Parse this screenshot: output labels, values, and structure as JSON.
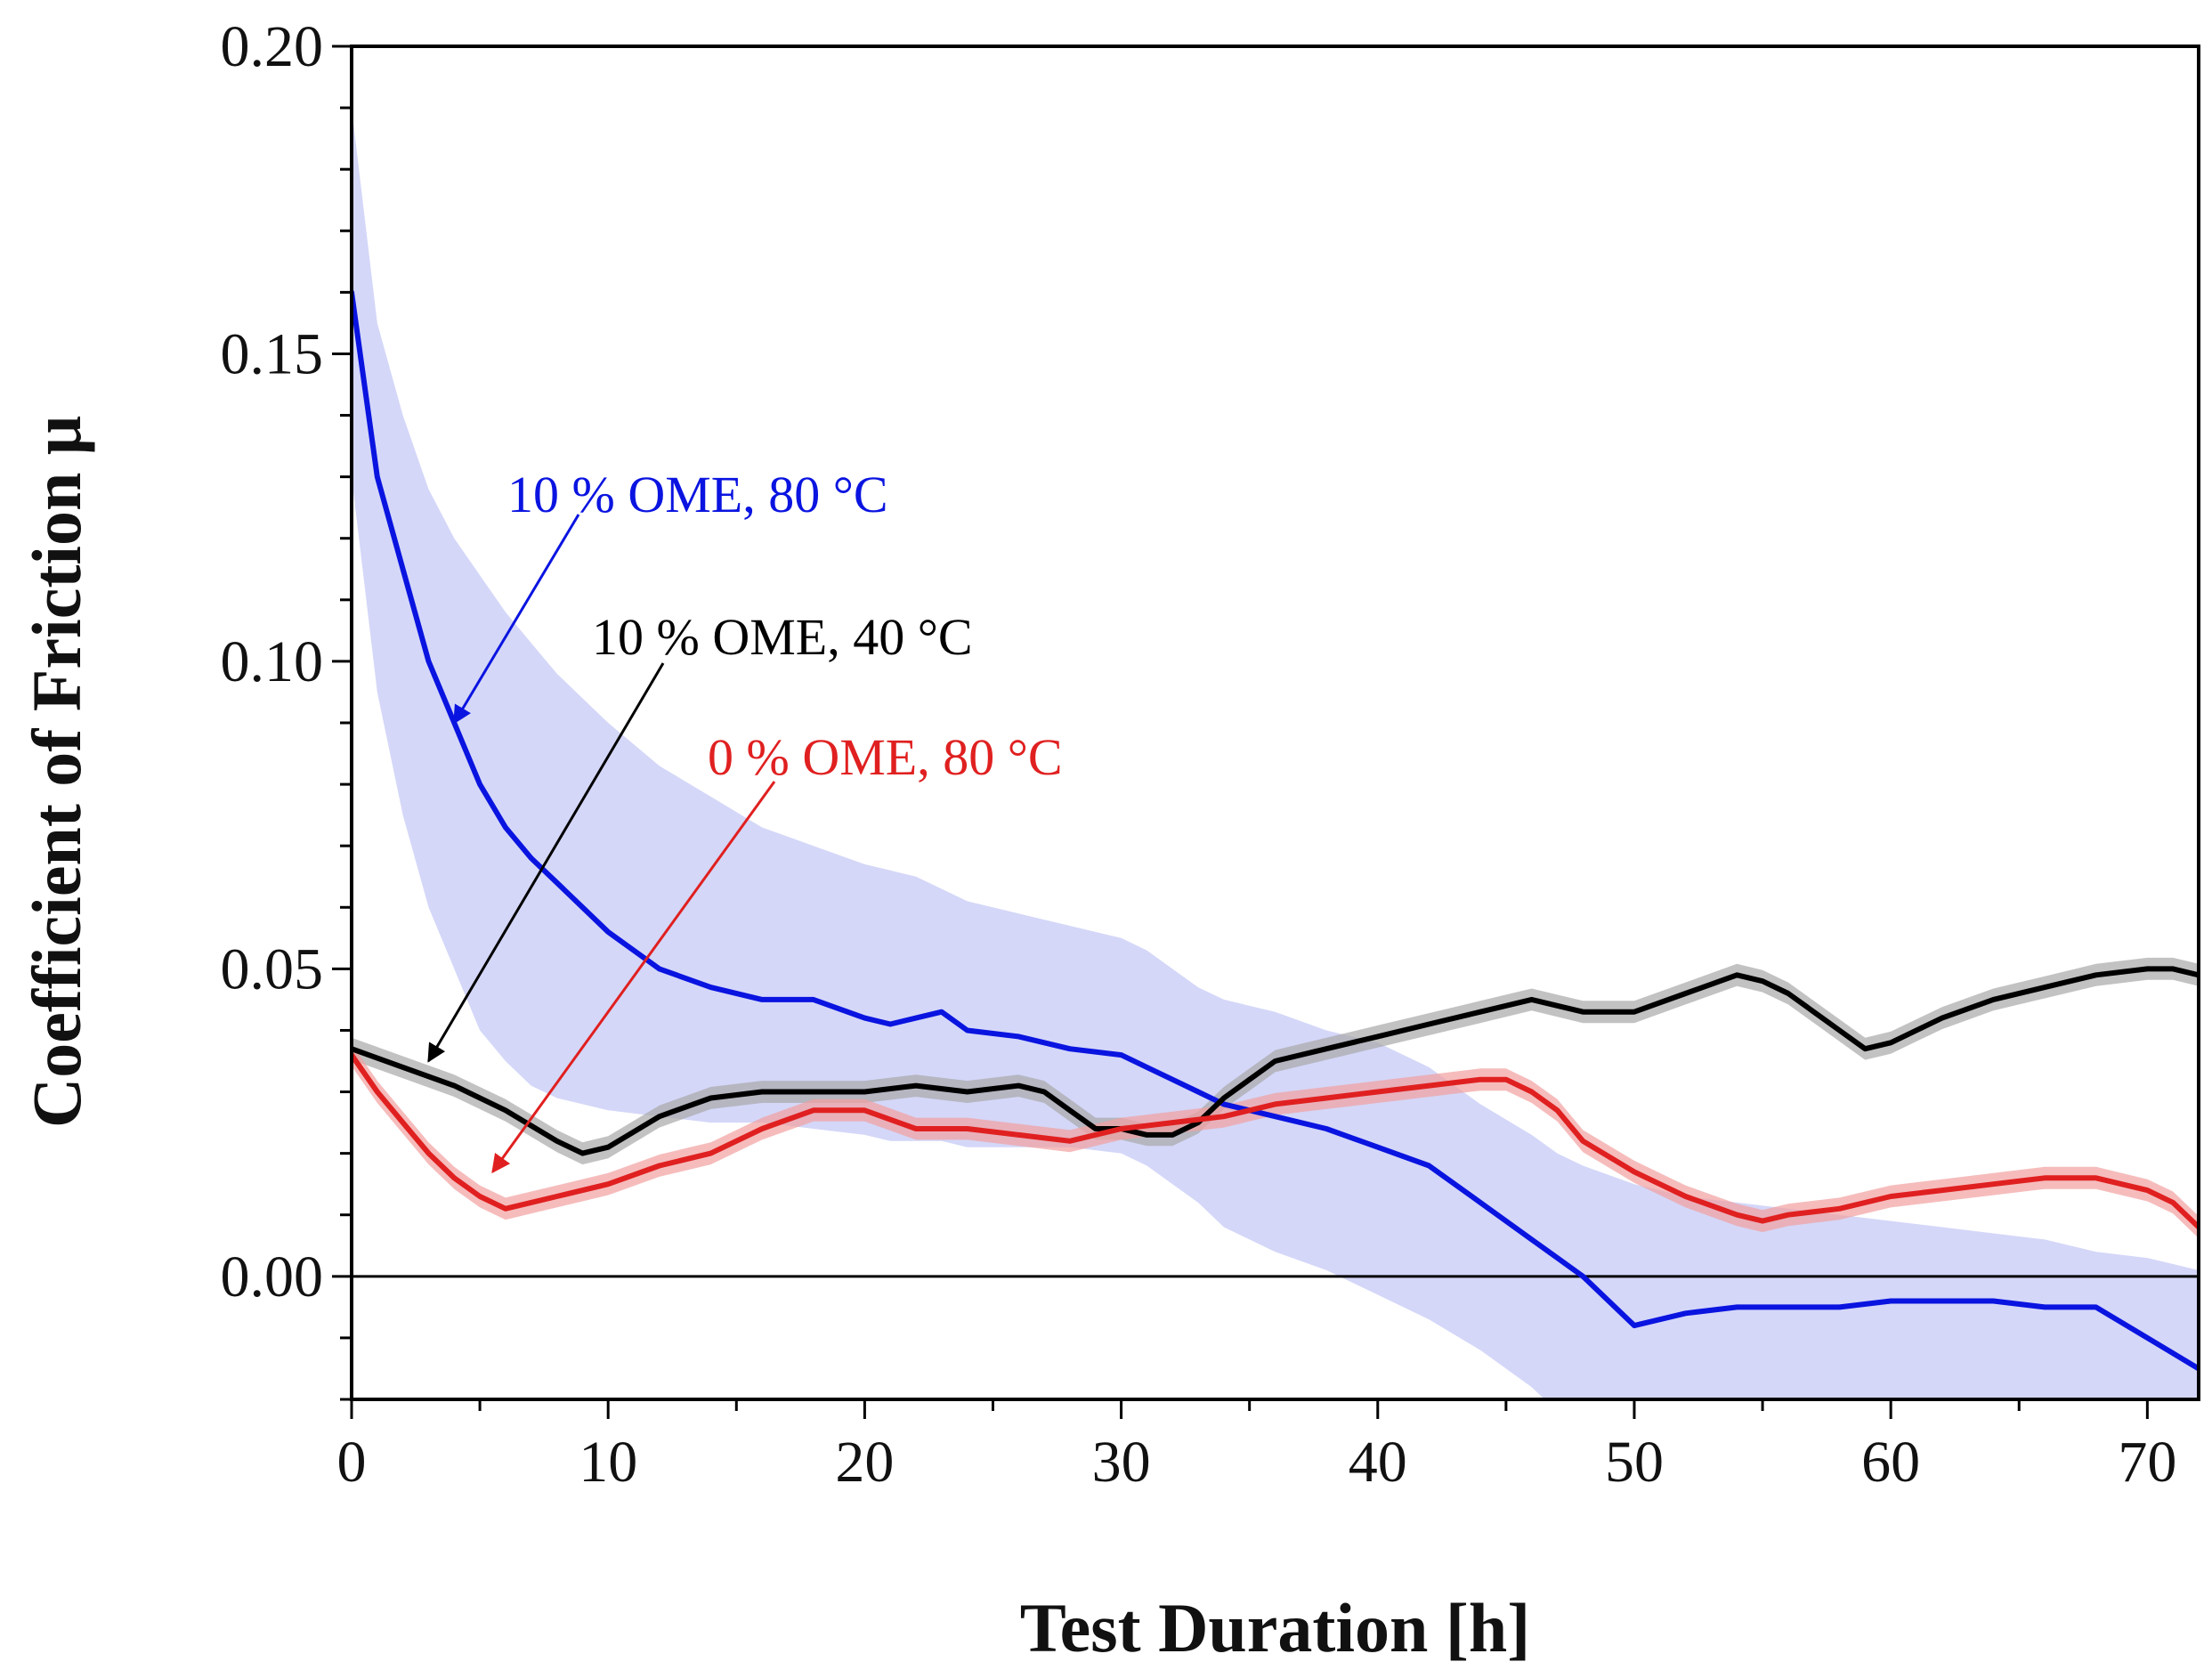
{
  "chart_data": {
    "type": "line",
    "title": "",
    "xlabel": "Test Duration [h]",
    "ylabel": "Coefficient of Friction μ",
    "xlim": [
      0,
      72
    ],
    "ylim": [
      -0.02,
      0.2
    ],
    "x_ticks": [
      0,
      10,
      20,
      30,
      40,
      50,
      60,
      70
    ],
    "x_tick_labels": [
      "0",
      "10",
      "20",
      "30",
      "40",
      "50",
      "60",
      "70"
    ],
    "y_ticks": [
      0.0,
      0.05,
      0.1,
      0.15,
      0.2
    ],
    "y_tick_labels": [
      "0.00",
      "0.05",
      "0.10",
      "0.15",
      "0.20"
    ],
    "grid": false,
    "zero_line": true,
    "series": [
      {
        "name": "10 % OME, 80 °C",
        "color": "#0a14e0",
        "band_color": "#c6c9f5",
        "x": [
          0,
          1,
          2,
          3,
          4,
          5,
          6,
          7,
          8,
          10,
          12,
          14,
          16,
          18,
          20,
          21,
          22,
          23,
          24,
          26,
          28,
          30,
          31,
          32,
          33,
          34,
          36,
          38,
          40,
          42,
          44,
          46,
          47,
          48,
          50,
          52,
          54,
          56,
          58,
          60,
          62,
          64,
          66,
          68,
          70,
          72
        ],
        "y": [
          0.16,
          0.13,
          0.115,
          0.1,
          0.09,
          0.08,
          0.073,
          0.068,
          0.064,
          0.056,
          0.05,
          0.047,
          0.045,
          0.045,
          0.042,
          0.041,
          0.042,
          0.043,
          0.04,
          0.039,
          0.037,
          0.036,
          0.034,
          0.032,
          0.03,
          0.028,
          0.026,
          0.024,
          0.021,
          0.018,
          0.012,
          0.006,
          0.003,
          0.0,
          -0.008,
          -0.006,
          -0.005,
          -0.005,
          -0.005,
          -0.004,
          -0.004,
          -0.004,
          -0.005,
          -0.005,
          -0.01,
          -0.015
        ],
        "upper": [
          0.19,
          0.155,
          0.14,
          0.128,
          0.12,
          0.114,
          0.108,
          0.103,
          0.098,
          0.09,
          0.083,
          0.078,
          0.073,
          0.07,
          0.067,
          0.066,
          0.065,
          0.063,
          0.061,
          0.059,
          0.057,
          0.055,
          0.053,
          0.05,
          0.047,
          0.045,
          0.043,
          0.04,
          0.038,
          0.034,
          0.028,
          0.023,
          0.02,
          0.018,
          0.015,
          0.013,
          0.012,
          0.011,
          0.01,
          0.009,
          0.008,
          0.007,
          0.006,
          0.004,
          0.003,
          0.001
        ],
        "lower": [
          0.13,
          0.095,
          0.075,
          0.06,
          0.05,
          0.04,
          0.035,
          0.031,
          0.029,
          0.027,
          0.026,
          0.025,
          0.025,
          0.024,
          0.023,
          0.022,
          0.022,
          0.022,
          0.021,
          0.021,
          0.021,
          0.02,
          0.018,
          0.015,
          0.012,
          0.008,
          0.004,
          0.001,
          -0.003,
          -0.007,
          -0.012,
          -0.018,
          -0.022,
          -0.028,
          -0.034,
          -0.036,
          -0.038,
          -0.039,
          -0.04,
          -0.041,
          -0.042,
          -0.042,
          -0.043,
          -0.043,
          -0.044,
          -0.045
        ]
      },
      {
        "name": "10 % OME, 40 °C",
        "color": "#000000",
        "band_color": "#a8a8a8",
        "x": [
          0,
          2,
          4,
          6,
          8,
          9,
          10,
          12,
          14,
          16,
          18,
          20,
          22,
          24,
          26,
          27,
          28,
          29,
          30,
          31,
          32,
          33,
          34,
          35,
          36,
          38,
          40,
          42,
          44,
          46,
          48,
          50,
          52,
          54,
          55,
          56,
          58,
          59,
          60,
          62,
          64,
          66,
          68,
          70,
          71,
          72
        ],
        "y": [
          0.037,
          0.034,
          0.031,
          0.027,
          0.022,
          0.02,
          0.021,
          0.026,
          0.029,
          0.03,
          0.03,
          0.03,
          0.031,
          0.03,
          0.031,
          0.03,
          0.027,
          0.024,
          0.024,
          0.023,
          0.023,
          0.025,
          0.029,
          0.032,
          0.035,
          0.037,
          0.039,
          0.041,
          0.043,
          0.045,
          0.043,
          0.043,
          0.046,
          0.049,
          0.048,
          0.046,
          0.04,
          0.037,
          0.038,
          0.042,
          0.045,
          0.047,
          0.049,
          0.05,
          0.05,
          0.049
        ]
      },
      {
        "name": "0 % OME, 80 °C",
        "color": "#e02020",
        "band_color": "#f2a0a0",
        "x": [
          0,
          1,
          2,
          3,
          4,
          5,
          6,
          7,
          8,
          10,
          12,
          14,
          16,
          18,
          20,
          22,
          24,
          26,
          28,
          30,
          32,
          34,
          36,
          38,
          40,
          42,
          44,
          45,
          46,
          47,
          48,
          50,
          52,
          54,
          55,
          56,
          58,
          60,
          62,
          64,
          66,
          68,
          70,
          71,
          72
        ],
        "y": [
          0.036,
          0.03,
          0.025,
          0.02,
          0.016,
          0.013,
          0.011,
          0.012,
          0.013,
          0.015,
          0.018,
          0.02,
          0.024,
          0.027,
          0.027,
          0.024,
          0.024,
          0.023,
          0.022,
          0.024,
          0.025,
          0.026,
          0.028,
          0.029,
          0.03,
          0.031,
          0.032,
          0.032,
          0.03,
          0.027,
          0.022,
          0.017,
          0.013,
          0.01,
          0.009,
          0.01,
          0.011,
          0.013,
          0.014,
          0.015,
          0.016,
          0.016,
          0.014,
          0.012,
          0.008
        ]
      }
    ],
    "annotations": [
      {
        "text": "10 % OME, 80 °C",
        "series": 0,
        "arrow_to": [
          4,
          0.09
        ]
      },
      {
        "text": "10 % OME, 40 °C",
        "series": 1,
        "arrow_to": [
          3,
          0.035
        ]
      },
      {
        "text": "0 % OME, 80 °C",
        "series": 2,
        "arrow_to": [
          5.5,
          0.017
        ]
      }
    ]
  }
}
